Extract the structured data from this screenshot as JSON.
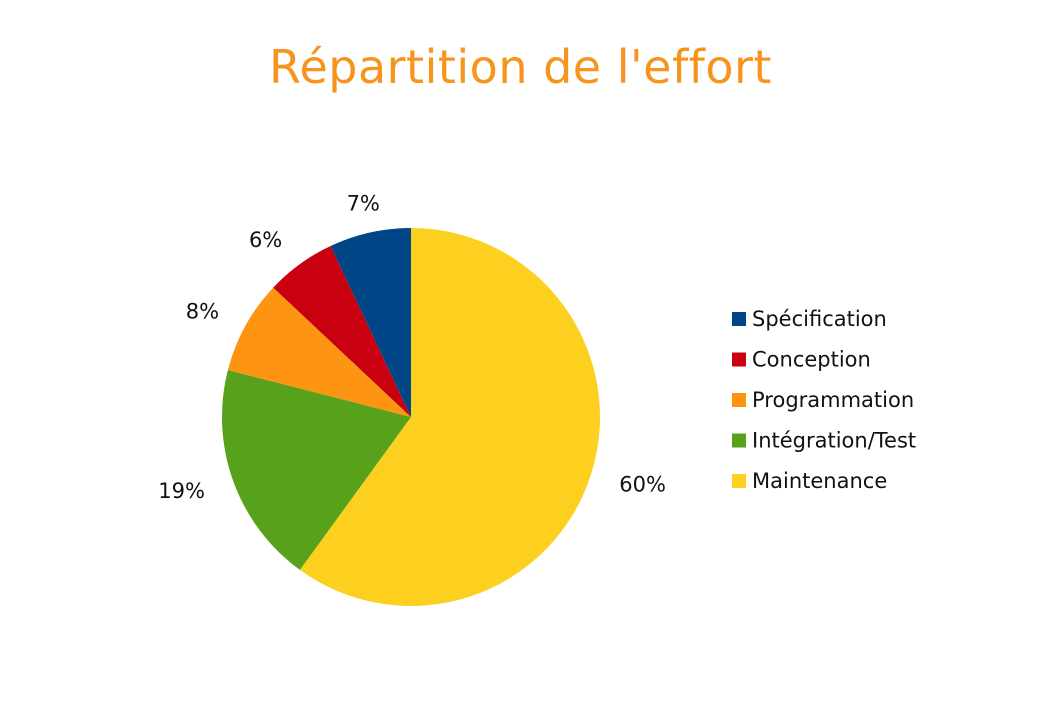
{
  "chart_data": {
    "type": "pie",
    "title": "Répartition de l'effort",
    "legend_position": "right",
    "start": "top, clockwise",
    "slices": [
      {
        "label": "Maintenance",
        "value": 60,
        "value_label": "60%",
        "color": "#fdd020"
      },
      {
        "label": "Intégration/Test",
        "value": 19,
        "value_label": "19%",
        "color": "#57a11b"
      },
      {
        "label": "Programmation",
        "value": 8,
        "value_label": "8%",
        "color": "#fd9412"
      },
      {
        "label": "Conception",
        "value": 6,
        "value_label": "6%",
        "color": "#c8000f"
      },
      {
        "label": "Spécification",
        "value": 7,
        "value_label": "7%",
        "color": "#004586"
      }
    ],
    "legend": [
      {
        "label": "Spécification",
        "color": "#004586"
      },
      {
        "label": "Conception",
        "color": "#c8000f"
      },
      {
        "label": "Programmation",
        "color": "#fd9412"
      },
      {
        "label": "Intégration/Test",
        "color": "#57a11b"
      },
      {
        "label": "Maintenance",
        "color": "#fdd020"
      }
    ]
  }
}
